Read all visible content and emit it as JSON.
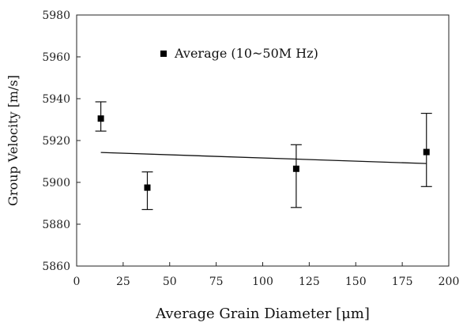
{
  "chart_data": {
    "type": "scatter",
    "xlabel": "Average Grain Diameter [μm]",
    "ylabel": "Group Velocity [m/s]",
    "xlim": [
      0,
      200
    ],
    "ylim": [
      5860,
      5980
    ],
    "xticks": [
      0,
      25,
      50,
      75,
      100,
      125,
      150,
      175,
      200
    ],
    "yticks": [
      5860,
      5880,
      5900,
      5920,
      5940,
      5960,
      5980
    ],
    "grid": false,
    "legend": {
      "placement": "top-center",
      "entries": [
        "Average (10~50M Hz)"
      ]
    },
    "series": [
      {
        "name": "Average (10~50M Hz)",
        "marker": "square",
        "color": "#000000",
        "points": [
          {
            "x": 13,
            "y": 5930.5,
            "yerr_low": 5924.5,
            "yerr_high": 5938.5
          },
          {
            "x": 38,
            "y": 5897.5,
            "yerr_low": 5887.0,
            "yerr_high": 5905.0
          },
          {
            "x": 118,
            "y": 5906.5,
            "yerr_low": 5888.0,
            "yerr_high": 5918.0
          },
          {
            "x": 188,
            "y": 5914.5,
            "yerr_low": 5898.0,
            "yerr_high": 5933.0
          }
        ]
      }
    ],
    "trendline": {
      "type": "linear",
      "x": [
        13,
        188
      ],
      "y": [
        5914.3,
        5909.0
      ]
    }
  }
}
